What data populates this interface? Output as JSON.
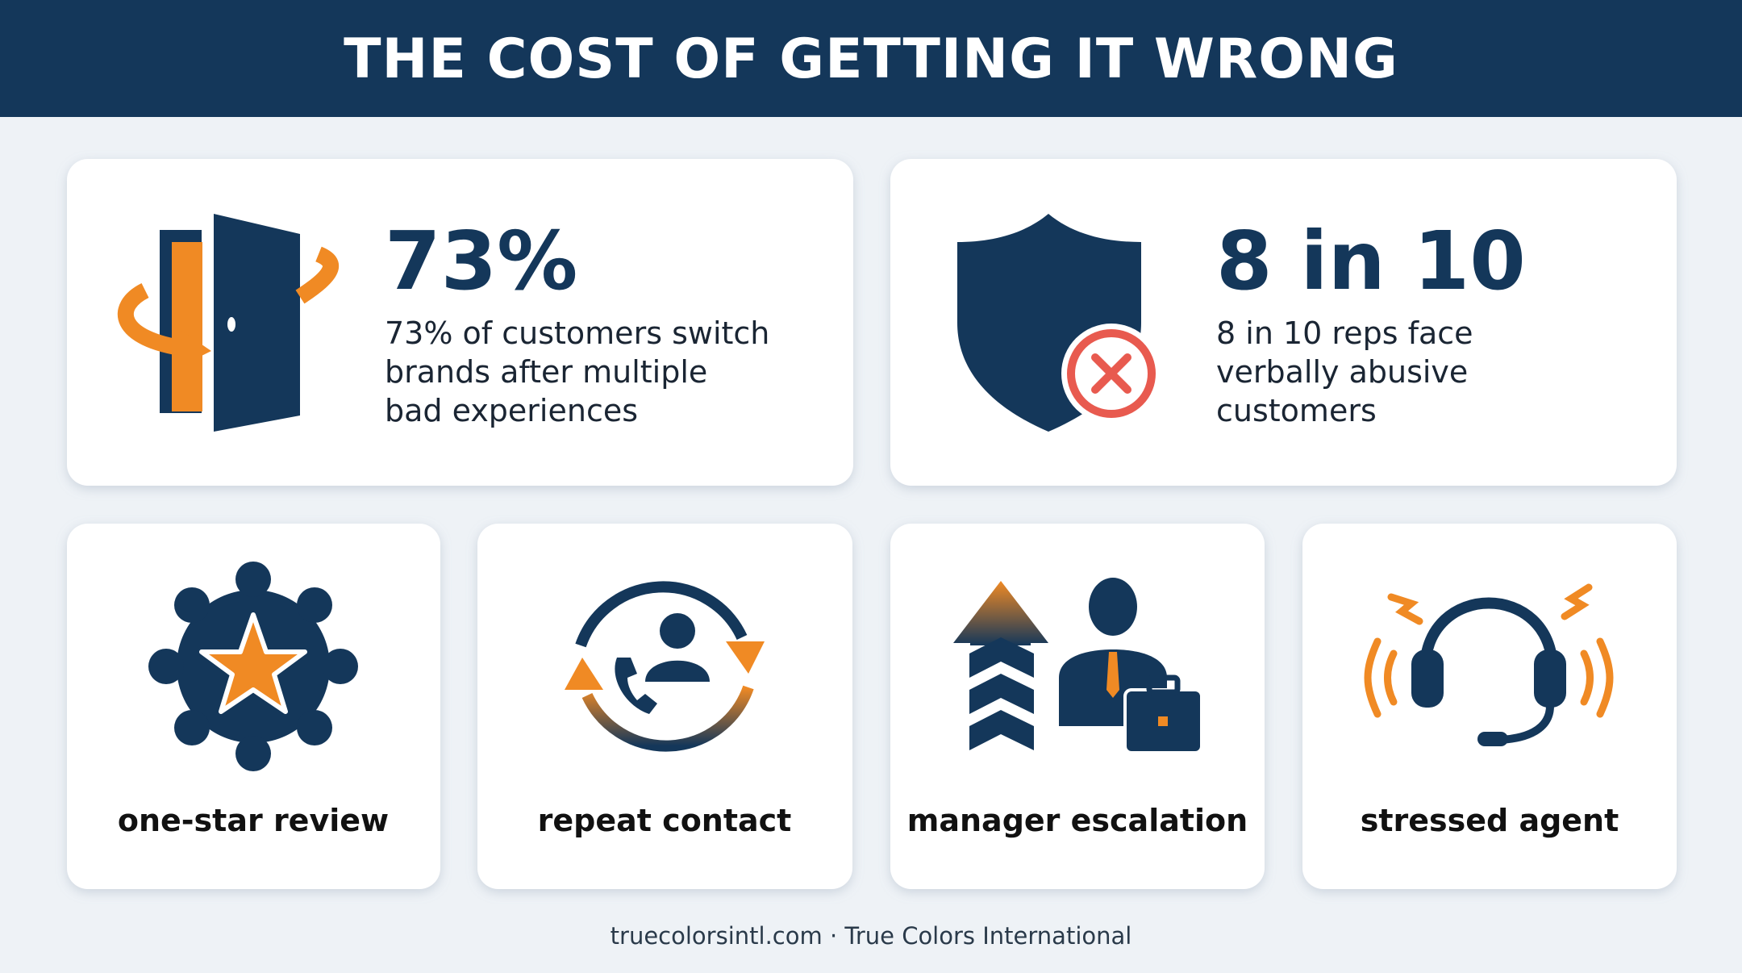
{
  "header": {
    "title": "THE COST OF GETTING IT WRONG"
  },
  "stats": [
    {
      "big": "73%",
      "lines": [
        "73% of customers switch",
        "brands after multiple",
        "bad experiences"
      ]
    },
    {
      "big": "8 in 10",
      "lines": [
        "8 in 10 reps face",
        "verbally abusive",
        "customers"
      ]
    }
  ],
  "items": [
    {
      "label": "one-star review"
    },
    {
      "label": "repeat contact"
    },
    {
      "label": "manager escalation"
    },
    {
      "label": "stressed agent"
    }
  ],
  "footer": {
    "text": "truecolorsintl.com · True Colors International"
  }
}
